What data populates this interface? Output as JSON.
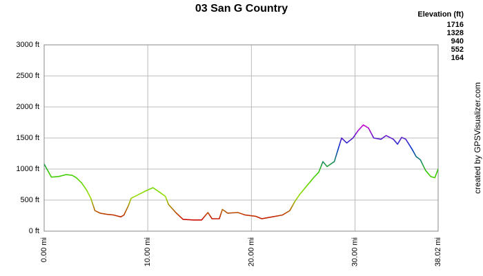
{
  "chart_data": {
    "type": "line",
    "title": "03 San G Country",
    "x": [
      0,
      0.4,
      0.7,
      1.4,
      2.1,
      2.7,
      3.1,
      3.6,
      4.1,
      4.5,
      4.9,
      5.4,
      6.1,
      6.7,
      7.4,
      7.7,
      8.1,
      8.4,
      9.0,
      9.7,
      10.5,
      11.2,
      11.7,
      12.0,
      12.7,
      13.4,
      14.4,
      15.2,
      15.8,
      16.2,
      16.9,
      17.2,
      17.7,
      18.7,
      19.4,
      20.4,
      21.0,
      22.0,
      23.0,
      23.7,
      24.2,
      24.7,
      25.3,
      26.0,
      26.5,
      26.9,
      27.3,
      28.0,
      28.7,
      29.2,
      29.8,
      30.3,
      30.8,
      31.3,
      31.8,
      32.5,
      33.0,
      33.7,
      34.1,
      34.5,
      34.9,
      35.5,
      35.9,
      36.3,
      36.8,
      37.3,
      37.7,
      38.02
    ],
    "values": [
      1080,
      960,
      870,
      880,
      910,
      900,
      860,
      780,
      660,
      530,
      330,
      290,
      270,
      260,
      230,
      260,
      400,
      530,
      580,
      640,
      700,
      620,
      560,
      430,
      300,
      190,
      180,
      180,
      300,
      200,
      200,
      350,
      290,
      300,
      260,
      240,
      200,
      230,
      260,
      330,
      480,
      600,
      720,
      860,
      950,
      1120,
      1040,
      1120,
      1500,
      1420,
      1500,
      1620,
      1710,
      1660,
      1500,
      1480,
      1540,
      1480,
      1400,
      1510,
      1480,
      1320,
      1200,
      1150,
      980,
      880,
      860,
      1000
    ],
    "xlim": [
      0,
      38.02
    ],
    "xticks": [
      {
        "value": 0,
        "label": "0.00 mi"
      },
      {
        "value": 10,
        "label": "10.00 mi"
      },
      {
        "value": 20,
        "label": "20.00 mi"
      },
      {
        "value": 30,
        "label": "30.00 mi"
      },
      {
        "value": 38.02,
        "label": "38.02 mi"
      }
    ],
    "ylim": [
      0,
      3000
    ],
    "yticks": [
      {
        "value": 0,
        "label": "0 ft"
      },
      {
        "value": 500,
        "label": "500 ft"
      },
      {
        "value": 1000,
        "label": "1000 ft"
      },
      {
        "value": 1500,
        "label": "1500 ft"
      },
      {
        "value": 2000,
        "label": "2000 ft"
      },
      {
        "value": 2500,
        "label": "2500 ft"
      },
      {
        "value": 3000,
        "label": "3000 ft"
      }
    ],
    "grid": true,
    "legend_title": "Elevation (ft)",
    "legend": [
      {
        "value": 1716,
        "color": "#cc00cc"
      },
      {
        "value": 1328,
        "color": "#0033cc"
      },
      {
        "value": 940,
        "color": "#33cc00"
      },
      {
        "value": 552,
        "color": "#99dd00"
      },
      {
        "value": 164,
        "color": "#cc0000"
      }
    ],
    "credit": "created by GPSVisualizer.com"
  }
}
